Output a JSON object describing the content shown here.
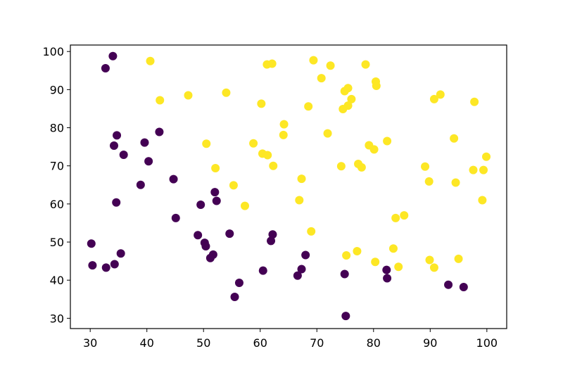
{
  "chart_data": {
    "type": "scatter",
    "title": "",
    "xlabel": "",
    "ylabel": "",
    "xlim": [
      26.5,
      103.5
    ],
    "ylim": [
      27.3,
      101.7
    ],
    "xticks": [
      30,
      40,
      50,
      60,
      70,
      80,
      90,
      100
    ],
    "yticks": [
      30,
      40,
      50,
      60,
      70,
      80,
      90,
      100
    ],
    "grid": false,
    "colors": {
      "class_0": "#440154",
      "class_1": "#fde725",
      "axis": "#000000"
    },
    "series": [
      {
        "class": 0,
        "points": [
          [
            34.0,
            98.8
          ],
          [
            32.7,
            95.6
          ],
          [
            42.2,
            78.9
          ],
          [
            34.7,
            78.0
          ],
          [
            34.2,
            75.3
          ],
          [
            39.6,
            76.1
          ],
          [
            35.9,
            72.9
          ],
          [
            40.3,
            71.2
          ],
          [
            44.7,
            66.5
          ],
          [
            38.9,
            65.0
          ],
          [
            34.6,
            60.4
          ],
          [
            52.0,
            63.1
          ],
          [
            52.3,
            60.8
          ],
          [
            49.5,
            59.8
          ],
          [
            45.1,
            56.3
          ],
          [
            49.0,
            51.8
          ],
          [
            50.2,
            49.8
          ],
          [
            50.4,
            48.9
          ],
          [
            54.6,
            52.2
          ],
          [
            62.2,
            52.0
          ],
          [
            61.9,
            50.3
          ],
          [
            30.2,
            49.6
          ],
          [
            35.4,
            47.0
          ],
          [
            51.7,
            46.7
          ],
          [
            51.2,
            45.8
          ],
          [
            68.0,
            46.6
          ],
          [
            30.4,
            43.9
          ],
          [
            32.8,
            43.3
          ],
          [
            34.3,
            44.2
          ],
          [
            60.5,
            42.5
          ],
          [
            67.3,
            42.9
          ],
          [
            66.6,
            41.2
          ],
          [
            74.9,
            41.6
          ],
          [
            82.3,
            42.7
          ],
          [
            82.4,
            40.5
          ],
          [
            56.3,
            39.3
          ],
          [
            55.5,
            35.6
          ],
          [
            93.2,
            38.8
          ],
          [
            95.9,
            38.2
          ],
          [
            75.1,
            30.6
          ]
        ]
      },
      {
        "class": 1,
        "points": [
          [
            40.6,
            97.5
          ],
          [
            61.2,
            96.6
          ],
          [
            62.1,
            96.8
          ],
          [
            69.4,
            97.7
          ],
          [
            72.4,
            96.3
          ],
          [
            78.6,
            96.6
          ],
          [
            80.4,
            92.1
          ],
          [
            80.5,
            91.0
          ],
          [
            70.8,
            93.0
          ],
          [
            74.9,
            89.6
          ],
          [
            75.5,
            90.4
          ],
          [
            76.1,
            87.5
          ],
          [
            75.5,
            85.8
          ],
          [
            74.6,
            84.9
          ],
          [
            54.0,
            89.2
          ],
          [
            47.3,
            88.5
          ],
          [
            42.3,
            87.2
          ],
          [
            60.2,
            86.3
          ],
          [
            68.5,
            85.6
          ],
          [
            90.7,
            87.5
          ],
          [
            91.8,
            88.7
          ],
          [
            97.8,
            86.8
          ],
          [
            64.2,
            80.9
          ],
          [
            64.1,
            78.1
          ],
          [
            71.9,
            78.5
          ],
          [
            50.5,
            75.8
          ],
          [
            58.8,
            75.9
          ],
          [
            60.4,
            73.2
          ],
          [
            61.3,
            72.8
          ],
          [
            62.3,
            70.0
          ],
          [
            52.1,
            69.4
          ],
          [
            74.3,
            69.9
          ],
          [
            77.3,
            70.5
          ],
          [
            77.9,
            69.6
          ],
          [
            79.2,
            75.4
          ],
          [
            80.1,
            74.3
          ],
          [
            82.4,
            76.5
          ],
          [
            94.2,
            77.2
          ],
          [
            89.1,
            69.8
          ],
          [
            97.6,
            68.9
          ],
          [
            99.4,
            68.9
          ],
          [
            99.9,
            72.4
          ],
          [
            67.3,
            66.6
          ],
          [
            89.8,
            65.9
          ],
          [
            94.5,
            65.6
          ],
          [
            55.3,
            64.9
          ],
          [
            57.3,
            59.5
          ],
          [
            66.9,
            61.0
          ],
          [
            99.2,
            61.0
          ],
          [
            85.4,
            57.0
          ],
          [
            83.9,
            56.3
          ],
          [
            69.0,
            52.8
          ],
          [
            83.5,
            48.3
          ],
          [
            75.2,
            46.5
          ],
          [
            77.1,
            47.6
          ],
          [
            80.3,
            44.8
          ],
          [
            84.4,
            43.5
          ],
          [
            89.9,
            45.3
          ],
          [
            90.7,
            43.3
          ],
          [
            95.0,
            45.6
          ]
        ]
      }
    ]
  }
}
